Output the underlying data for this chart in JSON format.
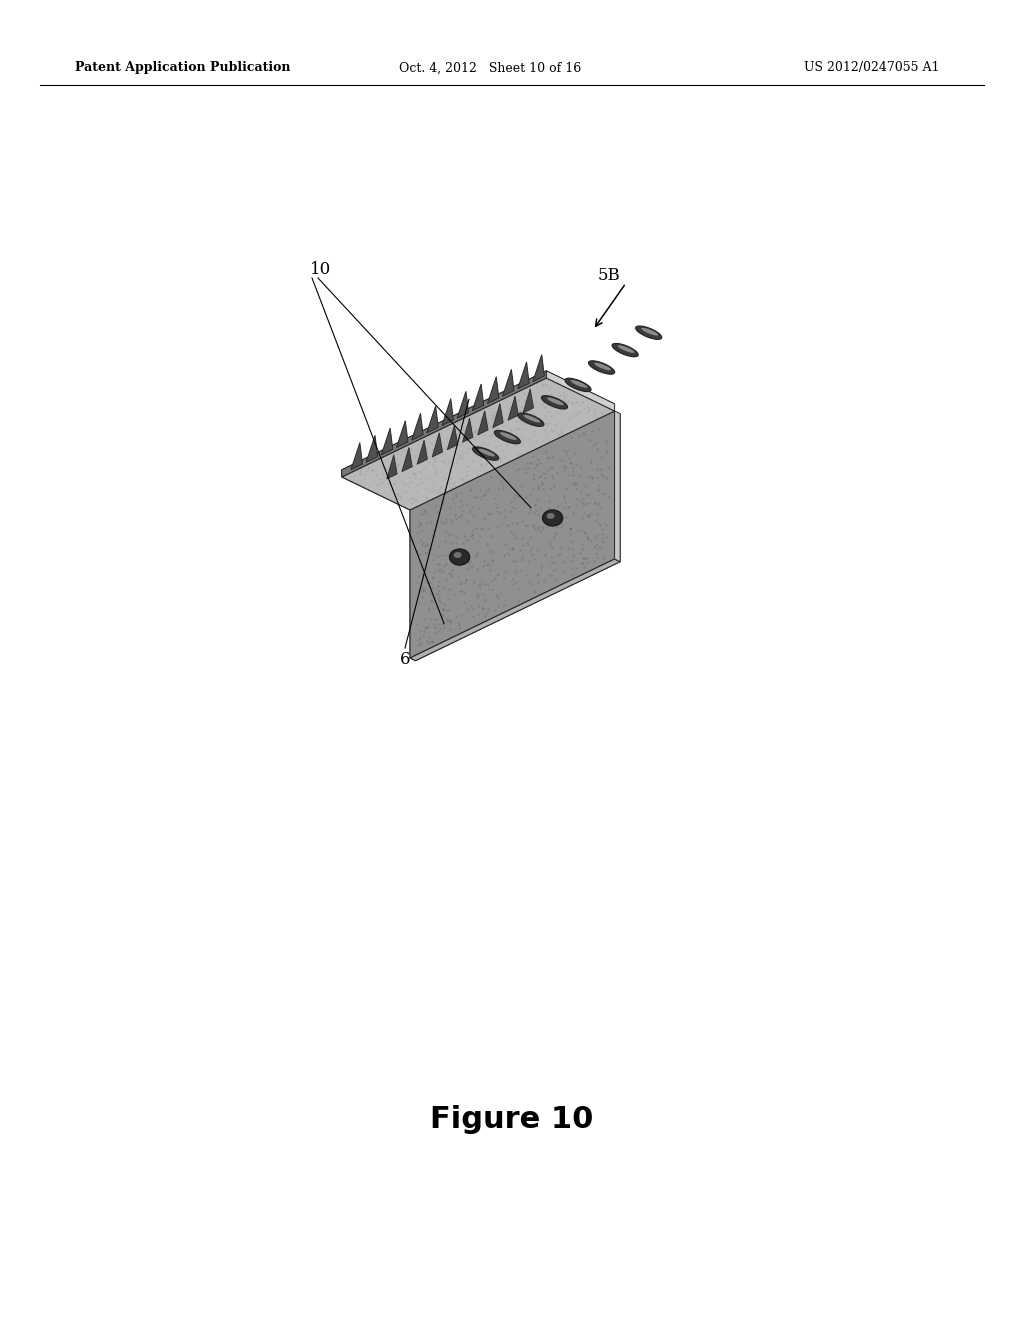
{
  "bg_color": "#ffffff",
  "header_left": "Patent Application Publication",
  "header_mid": "Oct. 4, 2012   Sheet 10 of 16",
  "header_right": "US 2012/0247055 A1",
  "figure_label": "Figure 10",
  "label_10": "10",
  "label_6": "6",
  "label_5B": "5B",
  "header_fontsize": 9,
  "figure_fontsize": 22,
  "label_fontsize": 12,
  "dark_gray": "#5a5a5a",
  "mid_gray": "#888888",
  "light_gray": "#b8b8b8",
  "very_light_gray": "#c8c8c8",
  "dark_edge": "#2a2a2a",
  "face_color": "#909090",
  "top_color": "#aaaaaa",
  "horiz_color": "#b0b0b0",
  "side_light": "#c0c0c0",
  "side_dark": "#606060"
}
